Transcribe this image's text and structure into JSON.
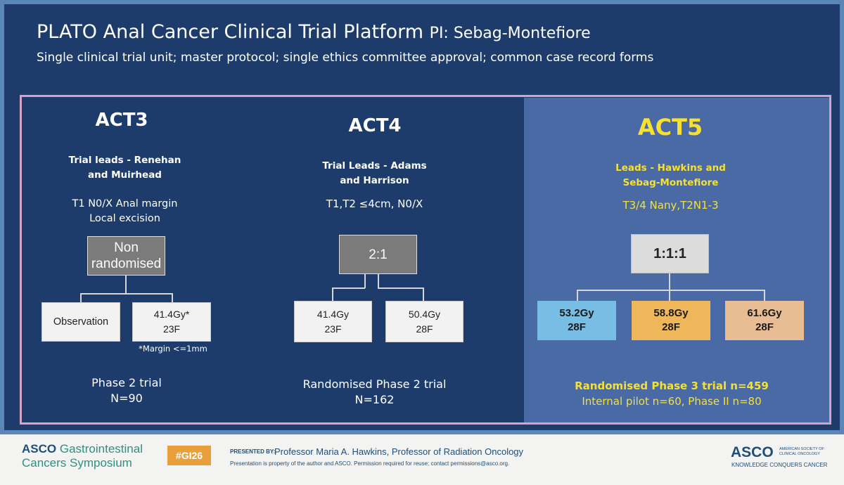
{
  "slide": {
    "title": "PLATO Anal Cancer Clinical Trial Platform",
    "pi": "PI: Sebag-Montefiore",
    "subtitle": "Single clinical trial unit; master protocol; single ethics committee approval; common case record forms"
  },
  "act3": {
    "name": "ACT3",
    "leads_line1": "Trial leads - Renehan",
    "leads_line2": "and Muirhead",
    "criteria_line1": "T1 N0/X Anal margin",
    "criteria_line2": "Local excision",
    "design_line1": "Non",
    "design_line2": "randomised",
    "arm1": "Observation",
    "arm2_line1": "41.4Gy*",
    "arm2_line2": "23F",
    "footnote": "*Margin <=1mm",
    "phase": "Phase 2 trial",
    "n": "N=90"
  },
  "act4": {
    "name": "ACT4",
    "leads_line1": "Trial Leads - Adams",
    "leads_line2": "and Harrison",
    "criteria": "T1,T2 ≤4cm, N0/X",
    "ratio": "2:1",
    "arm1_line1": "41.4Gy",
    "arm1_line2": "23F",
    "arm2_line1": "50.4Gy",
    "arm2_line2": "28F",
    "phase": "Randomised Phase 2 trial",
    "n": "N=162"
  },
  "act5": {
    "name": "ACT5",
    "leads_line1": "Leads - Hawkins and",
    "leads_line2": "Sebag-Montefiore",
    "criteria": "T3/4 Nany,T2N1-3",
    "ratio": "1:1:1",
    "arm1_line1": "53.2Gy",
    "arm1_line2": "28F",
    "arm2_line1": "58.8Gy",
    "arm2_line2": "28F",
    "arm3_line1": "61.6Gy",
    "arm3_line2": "28F",
    "phase": "Randomised Phase 3 trial n=459",
    "pilot": "Internal pilot n=60, Phase II n=80"
  },
  "footer": {
    "asco": "ASCO",
    "meeting_line1": "Gastrointestinal",
    "meeting_line2": "Cancers Symposium",
    "hashtag": "#GI26",
    "presented_by": "PRESENTED BY:",
    "presenter": "Professor Maria A. Hawkins, Professor of Radiation Oncology",
    "notice": "Presentation is property of the author and ASCO. Permission required for reuse; contact permissions@asco.org.",
    "logo": "ASCO",
    "society_line1": "AMERICAN SOCIETY OF",
    "society_line2": "CLINICAL ONCOLOGY",
    "tagline": "KNOWLEDGE CONQUERS CANCER"
  },
  "colors": {
    "background": "#1d3c6b",
    "act5_panel": "#4a6aa5",
    "frame": "#d8a2c8",
    "act5_highlight": "#f5e033",
    "arm_blue": "#78bde3",
    "arm_orange": "#eeb75a",
    "arm_peach": "#e9bd93",
    "hashtag_bg": "#e9a03b",
    "asco_blue": "#1f4e79",
    "asco_teal": "#2f8f83"
  }
}
